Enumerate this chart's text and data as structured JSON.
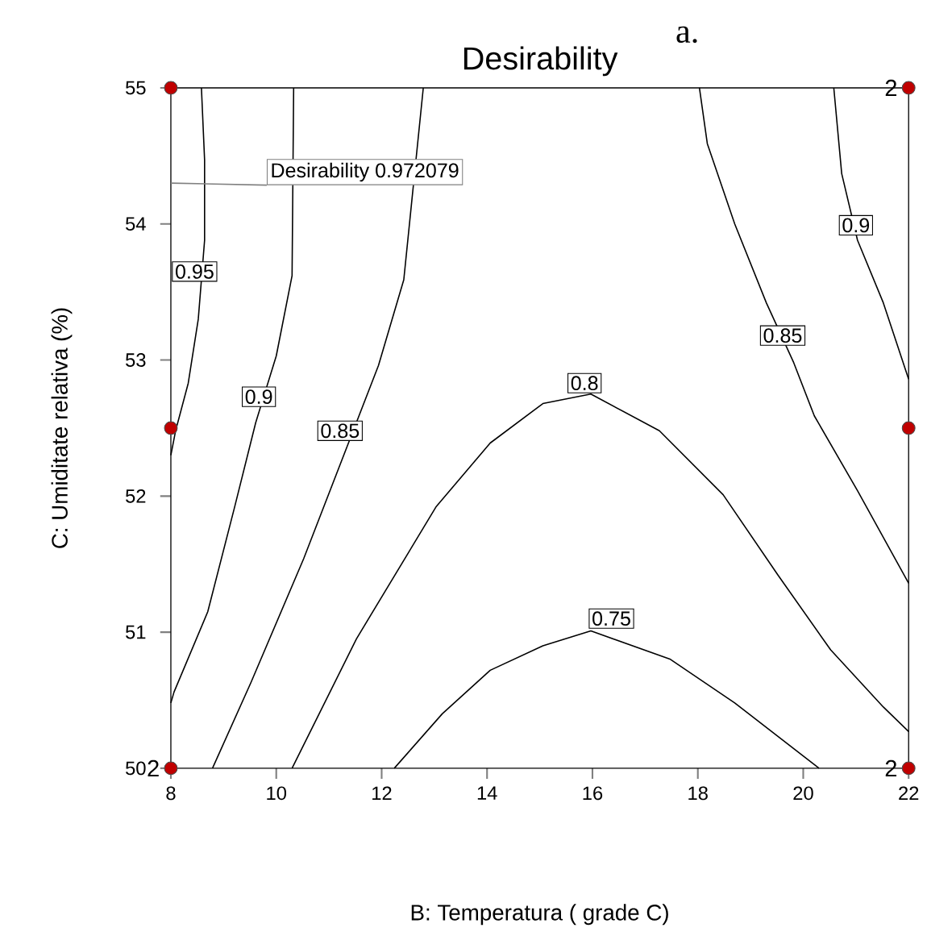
{
  "chart_data": {
    "type": "line",
    "title": "Desirability",
    "xlabel": "B: Temperatura ( grade C)",
    "ylabel": "C: Umiditate relativa (%)",
    "xlim": [
      8,
      22
    ],
    "ylim": [
      50,
      55
    ],
    "xticks": [
      8,
      10,
      12,
      14,
      16,
      18,
      20,
      22
    ],
    "yticks": [
      50,
      51,
      52,
      53,
      54,
      55
    ],
    "grid": false,
    "line_style": "solid",
    "series": [
      {
        "type": "line",
        "color": "#000000",
        "x": [
          8.58,
          8.64,
          8.64,
          8.52,
          8.33,
          8.09,
          8.0
        ],
        "values": [
          55,
          54.47,
          53.88,
          53.3,
          52.83,
          52.48,
          52.3
        ]
      },
      {
        "type": "line",
        "color": "#000000",
        "x": [
          10.33,
          10.3,
          10.0,
          9.61,
          9.21,
          8.7,
          8.06,
          8.0
        ],
        "values": [
          55,
          53.62,
          53.03,
          52.54,
          51.92,
          51.15,
          50.56,
          50.48
        ]
      },
      {
        "type": "line",
        "color": "#000000",
        "x": [
          12.79,
          12.42,
          11.94,
          10.52,
          9.52,
          8.79
        ],
        "values": [
          55,
          53.59,
          52.96,
          51.54,
          50.63,
          50.0
        ]
      },
      {
        "type": "line",
        "color": "#000000",
        "x": [
          10.3,
          11.52,
          13.03,
          14.06,
          15.06,
          15.97,
          17.27,
          18.48,
          19.52,
          20.52,
          21.52,
          22.0
        ],
        "values": [
          50.0,
          50.95,
          51.92,
          52.39,
          52.68,
          52.75,
          52.48,
          52.01,
          51.42,
          50.87,
          50.45,
          50.27
        ]
      },
      {
        "type": "line",
        "color": "#000000",
        "x": [
          12.24,
          13.15,
          14.06,
          15.06,
          15.97,
          17.48,
          18.7,
          20.3
        ],
        "values": [
          50.0,
          50.4,
          50.72,
          50.9,
          51.01,
          50.8,
          50.48,
          50.0
        ]
      },
      {
        "type": "line",
        "color": "#000000",
        "x": [
          18.03,
          18.18,
          18.7,
          19.3,
          19.82,
          20.21,
          21.03,
          22.0
        ],
        "values": [
          55,
          54.59,
          54.0,
          53.42,
          52.98,
          52.59,
          52.04,
          51.36
        ]
      },
      {
        "type": "line",
        "color": "#000000",
        "x": [
          20.58,
          20.73,
          21.03,
          21.52,
          22.0
        ],
        "values": [
          55,
          54.37,
          53.88,
          53.42,
          52.86
        ]
      },
      {
        "type": "scatter",
        "color": "#c00000",
        "x": [
          8,
          22,
          8,
          22,
          8,
          22
        ],
        "values": [
          55,
          55,
          52.5,
          52.5,
          50,
          50
        ]
      }
    ],
    "annotations": [
      "a.",
      {
        "text": "0.95",
        "x": 8.45,
        "y": 53.65
      },
      {
        "text": "0.9",
        "x": 9.67,
        "y": 52.73
      },
      {
        "text": "0.85",
        "x": 11.21,
        "y": 52.48
      },
      {
        "text": "0.8",
        "x": 15.85,
        "y": 52.83
      },
      {
        "text": "0.75",
        "x": 16.36,
        "y": 51.1
      },
      {
        "text": "0.85",
        "x": 19.61,
        "y": 53.18
      },
      {
        "text": "0.9",
        "x": 21.0,
        "y": 53.99
      },
      "Desirability 0.972079",
      {
        "text": "2",
        "x": 22,
        "y": 55
      },
      {
        "text": "2",
        "x": 8,
        "y": 50
      },
      {
        "text": "2",
        "x": 22,
        "y": 50
      }
    ]
  }
}
